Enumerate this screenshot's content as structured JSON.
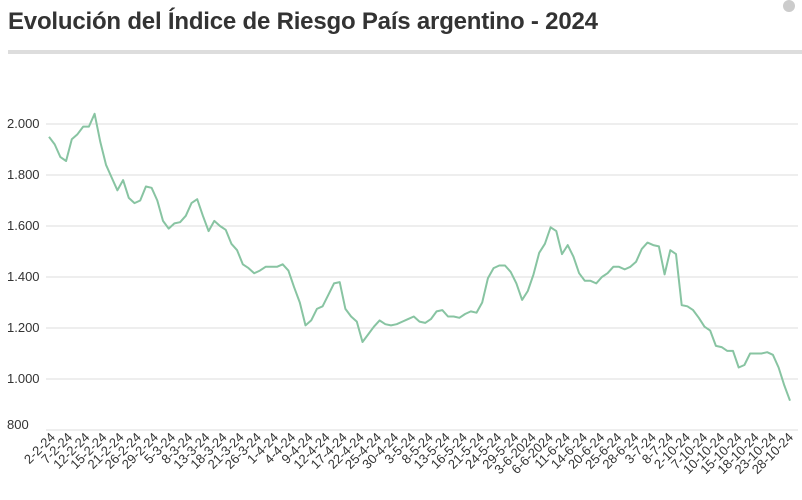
{
  "header": {
    "title": "Evolución del Índice de Riesgo País argentino - 2024"
  },
  "colors": {
    "line": "#88c4a2",
    "grid": "#dddddd",
    "text": "#333333"
  },
  "chart_data": {
    "type": "line",
    "title": "Evolución del Índice de Riesgo País argentino - 2024",
    "xlabel": "",
    "ylabel": "",
    "ylim": [
      800,
      2050
    ],
    "y_ticks": [
      {
        "value": 800,
        "label": "800"
      },
      {
        "value": 1000,
        "label": "1.000"
      },
      {
        "value": 1200,
        "label": "1.200"
      },
      {
        "value": 1400,
        "label": "1.400"
      },
      {
        "value": 1600,
        "label": "1.600"
      },
      {
        "value": 1800,
        "label": "1.800"
      },
      {
        "value": 2000,
        "label": "2.000"
      }
    ],
    "grid": true,
    "x_tick_labels": [
      "2-2-24",
      "7-2-24",
      "12-2-24",
      "15-2-24",
      "21-2-24",
      "26-2-24",
      "29-2-24",
      "5-3-24",
      "8-3-24",
      "13-3-24",
      "18-3-24",
      "21-3-24",
      "26-3-24",
      "1-4-24",
      "4-4-24",
      "9-4-24",
      "12-4-24",
      "17-4-24",
      "22-4-24",
      "25-4-24",
      "30-4-24",
      "3-5-24",
      "8-5-24",
      "13-5-24",
      "16-5-24",
      "21-5-24",
      "24-5-24",
      "29-5-24",
      "3-6-2024",
      "6-6-2024",
      "11-6-24",
      "14-6-24",
      "20-6-24",
      "25-6-24",
      "28-6-24",
      "3-7-24",
      "8-7-24",
      "2-10-24",
      "7-10-24",
      "10-10-24",
      "15-10-24",
      "18-10-24",
      "23-10-24",
      "28-10-24"
    ],
    "series": [
      {
        "values": [
          1950,
          1920,
          1870,
          1855,
          1940,
          1960,
          1990,
          1990,
          2040,
          1930,
          1840,
          1790,
          1740,
          1780,
          1710,
          1690,
          1700,
          1755,
          1750,
          1700,
          1620,
          1590,
          1610,
          1615,
          1640,
          1690,
          1705,
          1640,
          1580,
          1620,
          1600,
          1585,
          1530,
          1505,
          1450,
          1435,
          1415,
          1425,
          1440,
          1440,
          1440,
          1450,
          1425,
          1360,
          1300,
          1210,
          1230,
          1275,
          1285,
          1330,
          1375,
          1380,
          1275,
          1245,
          1225,
          1145,
          1175,
          1205,
          1230,
          1215,
          1210,
          1215,
          1225,
          1235,
          1245,
          1225,
          1220,
          1235,
          1265,
          1270,
          1245,
          1245,
          1240,
          1255,
          1265,
          1260,
          1300,
          1395,
          1435,
          1445,
          1445,
          1420,
          1375,
          1310,
          1345,
          1410,
          1495,
          1530,
          1595,
          1580,
          1490,
          1525,
          1480,
          1415,
          1385,
          1385,
          1375,
          1400,
          1415,
          1440,
          1440,
          1430,
          1440,
          1460,
          1510,
          1535,
          1525,
          1520,
          1410,
          1505,
          1490,
          1290,
          1285,
          1270,
          1240,
          1205,
          1190,
          1130,
          1125,
          1110,
          1110,
          1045,
          1055,
          1100,
          1100,
          1100,
          1105,
          1095,
          1045,
          975,
          915
        ]
      }
    ]
  }
}
